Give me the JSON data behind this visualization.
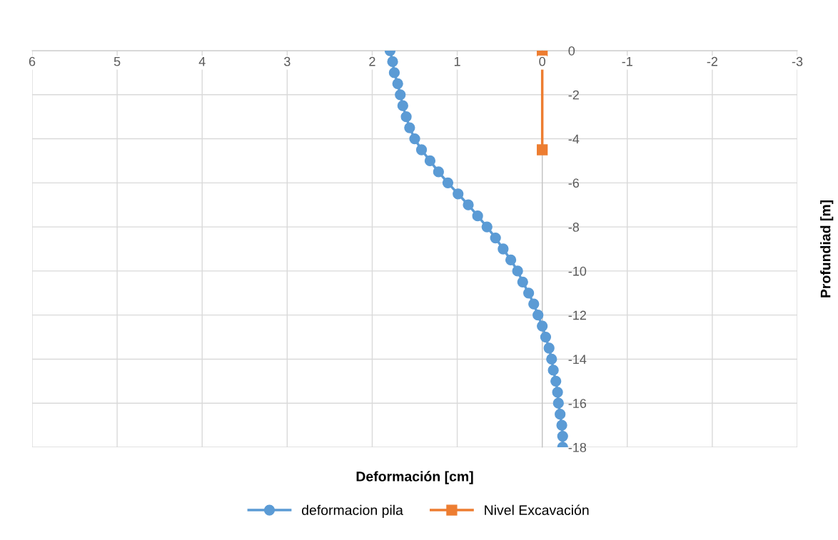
{
  "chart_data": {
    "type": "line",
    "xlabel": "Deformación [cm]",
    "ylabel": "Profundiad [m]",
    "xlim": [
      6,
      -3
    ],
    "xticks": [
      6,
      5,
      4,
      3,
      2,
      1,
      0,
      -1,
      -2,
      -3
    ],
    "ylim": [
      -18,
      0
    ],
    "yticks": [
      0,
      -2,
      -4,
      -6,
      -8,
      -10,
      -12,
      -14,
      -16,
      -18
    ],
    "grid": true,
    "legend": "bottom",
    "line_style": "solid",
    "series": [
      {
        "name": "deformacion pila",
        "color": "#5b9bd5",
        "marker": "circle",
        "x": [
          1.79,
          1.76,
          1.74,
          1.7,
          1.67,
          1.64,
          1.6,
          1.56,
          1.5,
          1.42,
          1.32,
          1.22,
          1.11,
          0.99,
          0.87,
          0.76,
          0.65,
          0.55,
          0.46,
          0.37,
          0.29,
          0.23,
          0.16,
          0.1,
          0.05,
          0.0,
          -0.04,
          -0.08,
          -0.11,
          -0.13,
          -0.16,
          -0.18,
          -0.19,
          -0.21,
          -0.23,
          -0.24,
          -0.24
        ],
        "values": [
          0,
          -0.5,
          -1,
          -1.5,
          -2,
          -2.5,
          -3,
          -3.5,
          -4,
          -4.5,
          -5,
          -5.5,
          -6,
          -6.5,
          -7,
          -7.5,
          -8,
          -8.5,
          -9,
          -9.5,
          -10,
          -10.5,
          -11,
          -11.5,
          -12,
          -12.5,
          -13,
          -13.5,
          -14,
          -14.5,
          -15,
          -15.5,
          -16,
          -16.5,
          -17,
          -17.5,
          -18
        ]
      },
      {
        "name": "Nivel Excavación",
        "color": "#ed7d31",
        "marker": "square",
        "x": [
          0,
          0
        ],
        "values": [
          0,
          -4.5
        ]
      }
    ]
  }
}
